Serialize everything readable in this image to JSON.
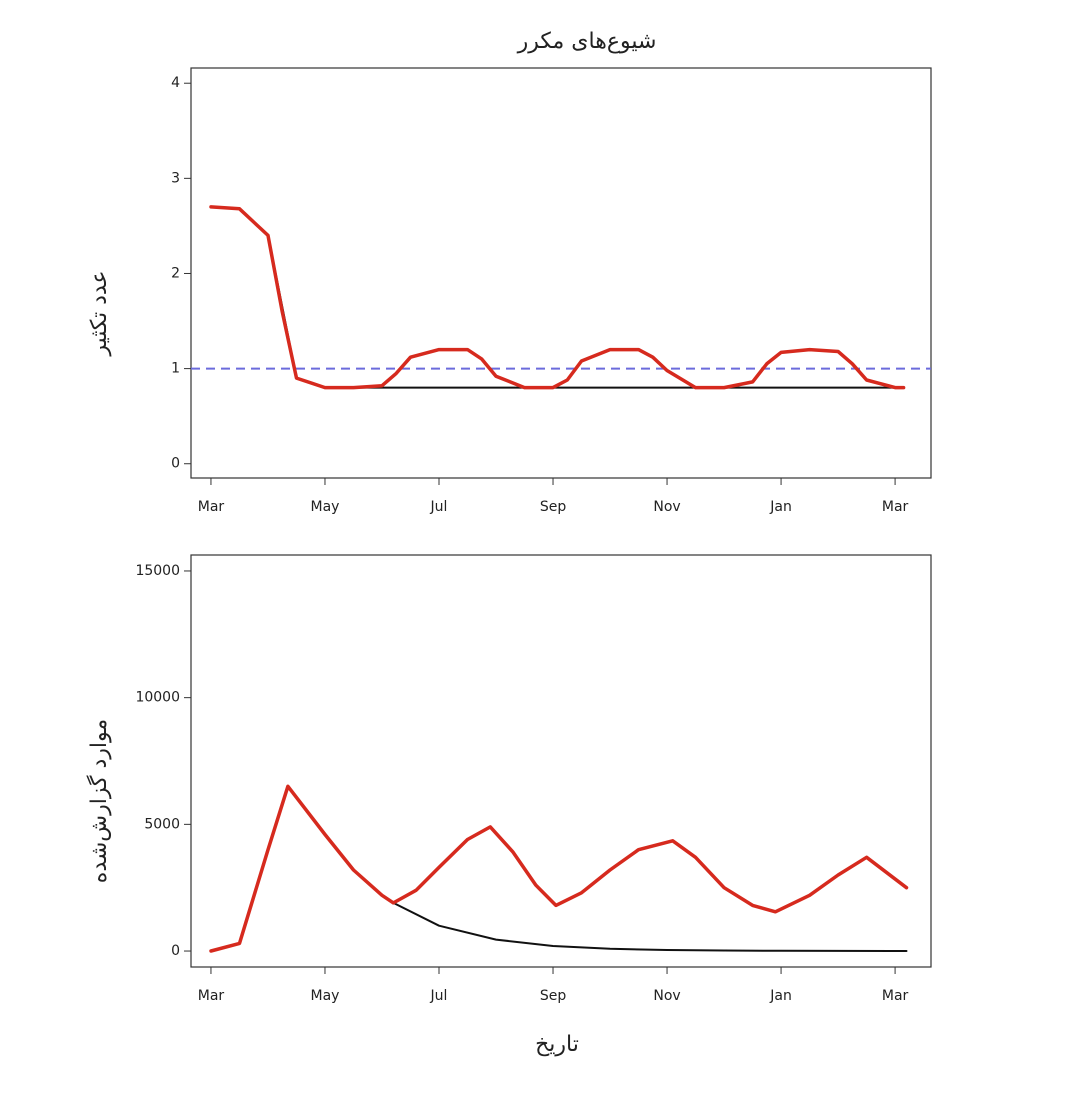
{
  "chart_data": [
    {
      "type": "line",
      "title": "شیوع‌های مکرر",
      "ylabel": "عدد تکثیر",
      "xlim": [
        -0.35,
        12.63
      ],
      "ylim": [
        -0.15,
        4.16
      ],
      "xticks": [
        {
          "value": 0,
          "label": "Mar"
        },
        {
          "value": 2,
          "label": "May"
        },
        {
          "value": 4,
          "label": "Jul"
        },
        {
          "value": 6,
          "label": "Sep"
        },
        {
          "value": 8,
          "label": "Nov"
        },
        {
          "value": 10,
          "label": "Jan"
        },
        {
          "value": 12,
          "label": "Mar"
        }
      ],
      "yticks": [
        0,
        1,
        2,
        3,
        4
      ],
      "hline": {
        "value": 1,
        "color": "#6b6bdc"
      },
      "series": [
        {
          "color": "#111111",
          "x": [
            0,
            0.5,
            1,
            1.5,
            2,
            12.15
          ],
          "values": [
            2.7,
            2.68,
            2.4,
            0.9,
            0.8,
            0.8
          ]
        },
        {
          "color": "#d62a1e",
          "x": [
            0,
            0.5,
            1,
            1.25,
            1.5,
            2,
            2.5,
            3,
            3.25,
            3.5,
            4,
            4.5,
            4.75,
            5,
            5.5,
            6,
            6.25,
            6.5,
            7,
            7.5,
            7.75,
            8,
            8.5,
            9,
            9.5,
            9.75,
            10,
            10.5,
            11,
            11.25,
            11.5,
            12,
            12.15
          ],
          "values": [
            2.7,
            2.68,
            2.4,
            1.6,
            0.9,
            0.8,
            0.8,
            0.82,
            0.95,
            1.12,
            1.2,
            1.2,
            1.1,
            0.92,
            0.8,
            0.8,
            0.88,
            1.08,
            1.2,
            1.2,
            1.12,
            0.98,
            0.8,
            0.8,
            0.86,
            1.05,
            1.17,
            1.2,
            1.18,
            1.05,
            0.88,
            0.8,
            0.8
          ]
        }
      ]
    },
    {
      "type": "line",
      "ylabel": "موارد گزارش‌شده",
      "xlabel": "تاریخ",
      "xlim": [
        -0.35,
        12.63
      ],
      "ylim": [
        -630,
        15630
      ],
      "xticks": [
        {
          "value": 0,
          "label": "Mar"
        },
        {
          "value": 2,
          "label": "May"
        },
        {
          "value": 4,
          "label": "Jul"
        },
        {
          "value": 6,
          "label": "Sep"
        },
        {
          "value": 8,
          "label": "Nov"
        },
        {
          "value": 10,
          "label": "Jan"
        },
        {
          "value": 12,
          "label": "Mar"
        }
      ],
      "yticks": [
        0,
        5000,
        10000,
        15000
      ],
      "series": [
        {
          "color": "#111111",
          "x": [
            0,
            0.5,
            1,
            1.35,
            2,
            2.5,
            3,
            3.2,
            4,
            5,
            6,
            7,
            8,
            9,
            10,
            11,
            12.2
          ],
          "values": [
            0,
            300,
            4000,
            6500,
            4600,
            3200,
            2200,
            1900,
            1000,
            450,
            200,
            90,
            40,
            20,
            10,
            5,
            0
          ]
        },
        {
          "color": "#d62a1e",
          "x": [
            0,
            0.5,
            1,
            1.35,
            2,
            2.5,
            3,
            3.2,
            3.6,
            4,
            4.5,
            4.9,
            5.3,
            5.7,
            6.05,
            6.5,
            7,
            7.5,
            8.1,
            8.5,
            9,
            9.5,
            9.9,
            10.5,
            11,
            11.5,
            12.2
          ],
          "values": [
            0,
            300,
            4000,
            6500,
            4600,
            3200,
            2200,
            1900,
            2400,
            3300,
            4400,
            4900,
            3900,
            2600,
            1800,
            2300,
            3200,
            4000,
            4350,
            3700,
            2500,
            1800,
            1550,
            2200,
            3000,
            3700,
            2500
          ]
        }
      ]
    }
  ]
}
